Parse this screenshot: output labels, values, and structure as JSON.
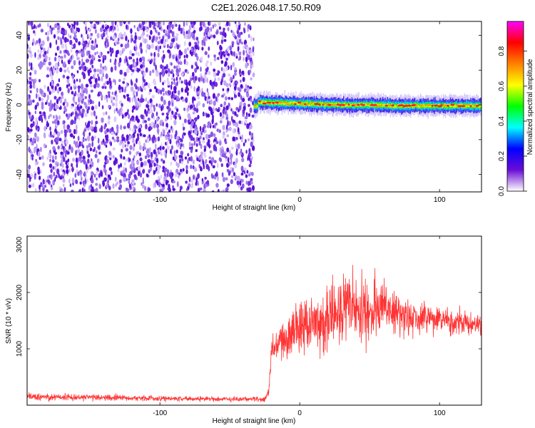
{
  "figure": {
    "title": "C2E1.2026.048.17.50.R09"
  },
  "chart_data": [
    {
      "type": "heatmap",
      "xlabel": "Height of straight line (km)",
      "ylabel": "Frequency (Hz)",
      "xlim": [
        -195,
        130
      ],
      "ylim": [
        -50,
        48
      ],
      "xticks": [
        -100,
        0,
        100
      ],
      "yticks": [
        40,
        20,
        0,
        -20,
        -40
      ],
      "noise_region_x": [
        -195,
        -33
      ],
      "signal_region_x": [
        -33,
        130
      ],
      "signal_center_frequency": [
        {
          "x": -30,
          "f": 1.5
        },
        {
          "x": -10,
          "f": 1.0
        },
        {
          "x": 10,
          "f": 0.5
        },
        {
          "x": 30,
          "f": 0.0
        },
        {
          "x": 50,
          "f": 0.0
        },
        {
          "x": 70,
          "f": -0.5
        },
        {
          "x": 90,
          "f": -0.5
        },
        {
          "x": 110,
          "f": -0.5
        },
        {
          "x": 130,
          "f": -0.5
        }
      ],
      "signal_peak_amplitude": 0.95,
      "colorbar": {
        "label": "Normalized spectral amplitude",
        "range": [
          0.0,
          0.97
        ],
        "ticks": [
          0.0,
          0.2,
          0.4,
          0.6,
          0.8
        ],
        "tick_labels": [
          "0.0",
          "0.2",
          "0.4",
          "0.6",
          "0.8"
        ],
        "colors": [
          "#ffffff",
          "#6a0dd6",
          "#0000ff",
          "#00ffff",
          "#00ff00",
          "#ffff00",
          "#ff8000",
          "#ff0000",
          "#ff00ff"
        ]
      }
    },
    {
      "type": "line",
      "xlabel": "Height of straight line (km)",
      "ylabel": "SNR (10 * v/v)",
      "xlim": [
        -195,
        130
      ],
      "ylim": [
        0,
        3000
      ],
      "xticks": [
        -100,
        0,
        100
      ],
      "yticks": [
        1000,
        2000,
        3000
      ],
      "color": "#ff3333",
      "series": [
        {
          "envelope": [
            {
              "x": -195,
              "mean": 150,
              "spread": 60
            },
            {
              "x": -150,
              "mean": 140,
              "spread": 50
            },
            {
              "x": -100,
              "mean": 120,
              "spread": 45
            },
            {
              "x": -50,
              "mean": 110,
              "spread": 40
            },
            {
              "x": -25,
              "mean": 110,
              "spread": 40
            },
            {
              "x": -22,
              "mean": 250,
              "spread": 80
            },
            {
              "x": -20,
              "mean": 1000,
              "spread": 250
            },
            {
              "x": -15,
              "mean": 1100,
              "spread": 200
            },
            {
              "x": -10,
              "mean": 1200,
              "spread": 350
            },
            {
              "x": 0,
              "mean": 1400,
              "spread": 450
            },
            {
              "x": 20,
              "mean": 1550,
              "spread": 500
            },
            {
              "x": 35,
              "mean": 1700,
              "spread": 550
            },
            {
              "x": 60,
              "mean": 1700,
              "spread": 450
            },
            {
              "x": 80,
              "mean": 1550,
              "spread": 300
            },
            {
              "x": 100,
              "mean": 1500,
              "spread": 250
            },
            {
              "x": 130,
              "mean": 1400,
              "spread": 150
            }
          ]
        }
      ]
    }
  ]
}
